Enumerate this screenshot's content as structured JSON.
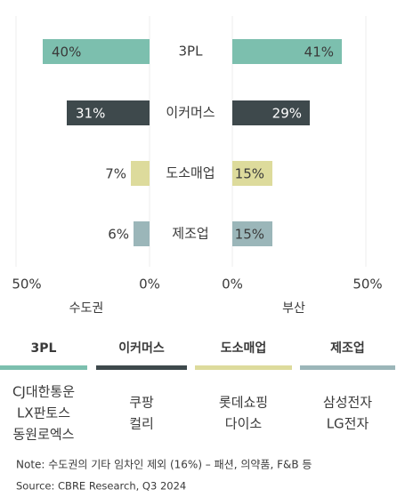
{
  "chart_data": {
    "type": "butterfly",
    "categories": [
      "3PL",
      "이커머스",
      "도소매업",
      "제조업"
    ],
    "colors": [
      "#7cbfae",
      "#3e494c",
      "#dddb9c",
      "#9bb6b9"
    ],
    "label_colors": [
      "#3a3a3a",
      "#ffffff",
      "#3a3a3a",
      "#3a3a3a"
    ],
    "series": [
      {
        "name": "수도권",
        "values": [
          40,
          31,
          7,
          6
        ],
        "value_labels": [
          "40%",
          "31%",
          "7%",
          "6%"
        ]
      },
      {
        "name": "부산",
        "values": [
          41,
          29,
          15,
          15
        ],
        "value_labels": [
          "41%",
          "29%",
          "15%",
          "15%"
        ]
      }
    ],
    "xlim": [
      0,
      50
    ],
    "xticks": [
      {
        "value": 0,
        "label": "0%"
      },
      {
        "value": 50,
        "label": "50%"
      }
    ],
    "grid": true
  },
  "table": {
    "columns": [
      {
        "header": "3PL",
        "items": [
          "CJ대한통운",
          "LX판토스",
          "동원로엑스"
        ]
      },
      {
        "header": "이커머스",
        "items": [
          "쿠팡",
          "컬리"
        ]
      },
      {
        "header": "도소매업",
        "items": [
          "롯데쇼핑",
          "다이소"
        ]
      },
      {
        "header": "제조업",
        "items": [
          "삼성전자",
          "LG전자"
        ]
      }
    ]
  },
  "note": "Note: 수도권의 기타 임차인 제외 (16%) – 패션, 의약품, F&B 등",
  "source": "Source: CBRE Research, Q3 2024"
}
